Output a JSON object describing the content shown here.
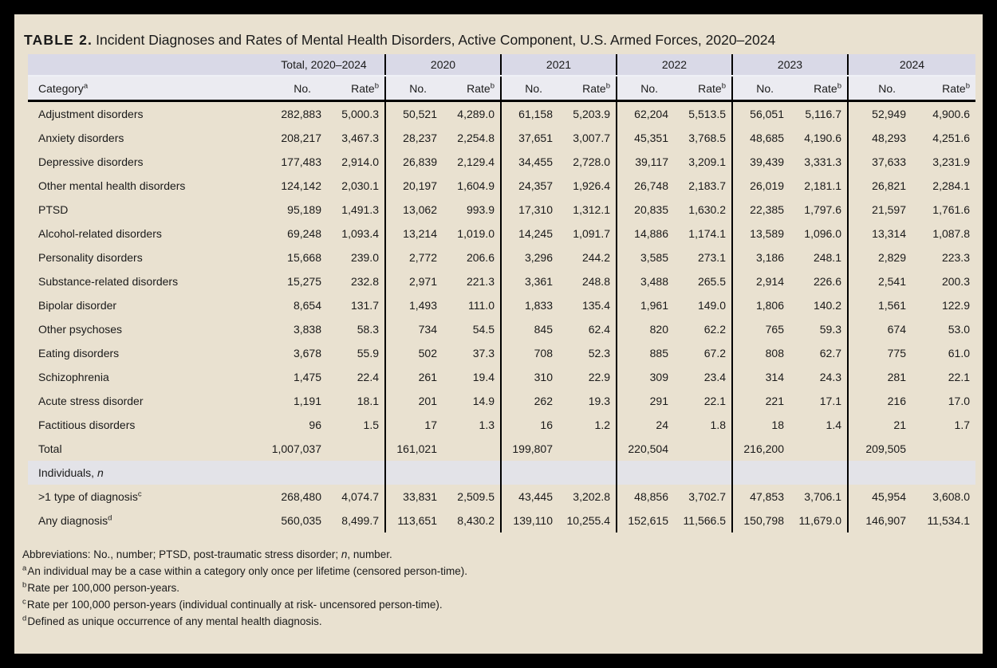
{
  "title": {
    "label": "TABLE 2.",
    "text": "Incident Diagnoses and Rates of Mental Health Disorders, Active Component, U.S. Armed Forces, 2020–2024"
  },
  "colors": {
    "frame": "#000000",
    "card_bg": "#e9e1d0",
    "band_year": "#d9d9e7",
    "band_subheader": "#ebebf1",
    "band_section": "#e3e3e8"
  },
  "table": {
    "groups": [
      {
        "label": "Total, 2020–2024"
      },
      {
        "label": "2020"
      },
      {
        "label": "2021"
      },
      {
        "label": "2022"
      },
      {
        "label": "2023"
      },
      {
        "label": "2024"
      }
    ],
    "col_headers": {
      "category": "Category",
      "category_sup": "a",
      "no": "No.",
      "rate": "Rate",
      "rate_sup": "b"
    },
    "rows": [
      {
        "type": "data",
        "label": "Adjustment disorders",
        "values": [
          "282,883",
          "5,000.3",
          "50,521",
          "4,289.0",
          "61,158",
          "5,203.9",
          "62,204",
          "5,513.5",
          "56,051",
          "5,116.7",
          "52,949",
          "4,900.6"
        ]
      },
      {
        "type": "data",
        "label": "Anxiety disorders",
        "values": [
          "208,217",
          "3,467.3",
          "28,237",
          "2,254.8",
          "37,651",
          "3,007.7",
          "45,351",
          "3,768.5",
          "48,685",
          "4,190.6",
          "48,293",
          "4,251.6"
        ]
      },
      {
        "type": "data",
        "label": "Depressive disorders",
        "values": [
          "177,483",
          "2,914.0",
          "26,839",
          "2,129.4",
          "34,455",
          "2,728.0",
          "39,117",
          "3,209.1",
          "39,439",
          "3,331.3",
          "37,633",
          "3,231.9"
        ]
      },
      {
        "type": "data",
        "label": "Other mental health disorders",
        "values": [
          "124,142",
          "2,030.1",
          "20,197",
          "1,604.9",
          "24,357",
          "1,926.4",
          "26,748",
          "2,183.7",
          "26,019",
          "2,181.1",
          "26,821",
          "2,284.1"
        ]
      },
      {
        "type": "data",
        "label": "PTSD",
        "values": [
          "95,189",
          "1,491.3",
          "13,062",
          "993.9",
          "17,310",
          "1,312.1",
          "20,835",
          "1,630.2",
          "22,385",
          "1,797.6",
          "21,597",
          "1,761.6"
        ]
      },
      {
        "type": "data",
        "label": "Alcohol-related disorders",
        "values": [
          "69,248",
          "1,093.4",
          "13,214",
          "1,019.0",
          "14,245",
          "1,091.7",
          "14,886",
          "1,174.1",
          "13,589",
          "1,096.0",
          "13,314",
          "1,087.8"
        ]
      },
      {
        "type": "data",
        "label": "Personality disorders",
        "values": [
          "15,668",
          "239.0",
          "2,772",
          "206.6",
          "3,296",
          "244.2",
          "3,585",
          "273.1",
          "3,186",
          "248.1",
          "2,829",
          "223.3"
        ]
      },
      {
        "type": "data",
        "label": "Substance-related disorders",
        "values": [
          "15,275",
          "232.8",
          "2,971",
          "221.3",
          "3,361",
          "248.8",
          "3,488",
          "265.5",
          "2,914",
          "226.6",
          "2,541",
          "200.3"
        ]
      },
      {
        "type": "data",
        "label": "Bipolar disorder",
        "values": [
          "8,654",
          "131.7",
          "1,493",
          "111.0",
          "1,833",
          "135.4",
          "1,961",
          "149.0",
          "1,806",
          "140.2",
          "1,561",
          "122.9"
        ]
      },
      {
        "type": "data",
        "label": "Other psychoses",
        "values": [
          "3,838",
          "58.3",
          "734",
          "54.5",
          "845",
          "62.4",
          "820",
          "62.2",
          "765",
          "59.3",
          "674",
          "53.0"
        ]
      },
      {
        "type": "data",
        "label": "Eating disorders",
        "values": [
          "3,678",
          "55.9",
          "502",
          "37.3",
          "708",
          "52.3",
          "885",
          "67.2",
          "808",
          "62.7",
          "775",
          "61.0"
        ]
      },
      {
        "type": "data",
        "label": "Schizophrenia",
        "values": [
          "1,475",
          "22.4",
          "261",
          "19.4",
          "310",
          "22.9",
          "309",
          "23.4",
          "314",
          "24.3",
          "281",
          "22.1"
        ]
      },
      {
        "type": "data",
        "label": "Acute stress disorder",
        "values": [
          "1,191",
          "18.1",
          "201",
          "14.9",
          "262",
          "19.3",
          "291",
          "22.1",
          "221",
          "17.1",
          "216",
          "17.0"
        ]
      },
      {
        "type": "data",
        "label": "Factitious disorders",
        "values": [
          "96",
          "1.5",
          "17",
          "1.3",
          "16",
          "1.2",
          "24",
          "1.8",
          "18",
          "1.4",
          "21",
          "1.7"
        ]
      },
      {
        "type": "total",
        "label": "Total",
        "values": [
          "1,007,037",
          "",
          "161,021",
          "",
          "199,807",
          "",
          "220,504",
          "",
          "216,200",
          "",
          "209,505",
          ""
        ]
      },
      {
        "type": "section",
        "label": "Individuals, ",
        "label_italic": "n"
      },
      {
        "type": "data",
        "label": ">1 type of diagnosis",
        "sup": "c",
        "values": [
          "268,480",
          "4,074.7",
          "33,831",
          "2,509.5",
          "43,445",
          "3,202.8",
          "48,856",
          "3,702.7",
          "47,853",
          "3,706.1",
          "45,954",
          "3,608.0"
        ]
      },
      {
        "type": "data",
        "label": "Any diagnosis",
        "sup": "d",
        "values": [
          "560,035",
          "8,499.7",
          "113,651",
          "8,430.2",
          "139,110",
          "10,255.4",
          "152,615",
          "11,566.5",
          "150,798",
          "11,679.0",
          "146,907",
          "11,534.1"
        ]
      }
    ]
  },
  "footnotes": {
    "abbreviations": [
      {
        "t": "Abbreviations: No., number; PTSD, post-traumatic stress disorder; "
      },
      {
        "t": "n",
        "i": true
      },
      {
        "t": ", number."
      }
    ],
    "notes": [
      {
        "sup": "a",
        "text": "An individual may be a case within a category only once per lifetime (censored person-time)."
      },
      {
        "sup": "b",
        "text": "Rate per 100,000 person-years."
      },
      {
        "sup": "c",
        "text": "Rate per 100,000 person-years (individual continually at risk- uncensored person-time)."
      },
      {
        "sup": "d",
        "text": "Defined as unique occurrence of any mental health diagnosis."
      }
    ]
  }
}
